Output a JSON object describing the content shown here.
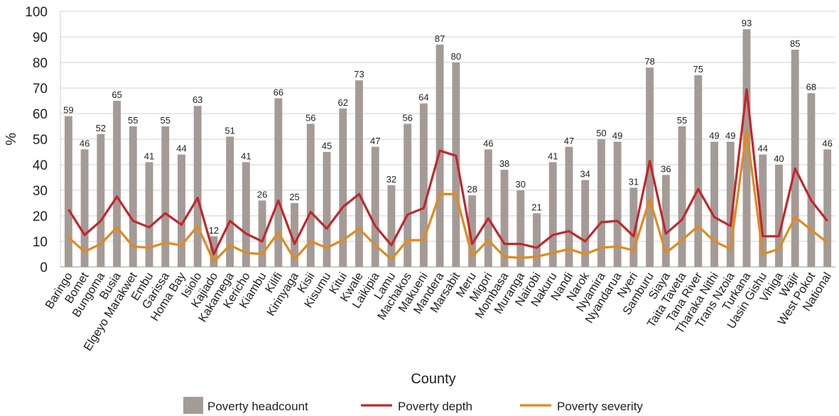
{
  "chart_data": {
    "type": "bar",
    "xlabel": "County",
    "ylabel": "%",
    "ylim": [
      0,
      100
    ],
    "yticks": [
      0,
      10,
      20,
      30,
      40,
      50,
      60,
      70,
      80,
      90,
      100
    ],
    "grid": true,
    "legend_position": "bottom",
    "categories": [
      "Baringo",
      "Bomet",
      "Bungoma",
      "Busia",
      "Elgeyo Marakwet",
      "Embu",
      "Garissa",
      "Homa Bay",
      "Isiolo",
      "Kajiado",
      "Kakamega",
      "Kericho",
      "Kiambu",
      "Kilifi",
      "Kirinyaga",
      "Kisii",
      "Kisumu",
      "Kitui",
      "Kwale",
      "Laikipia",
      "Lamu",
      "Machakos",
      "Makueni",
      "Mandera",
      "Marsabit",
      "Meru",
      "Migori",
      "Mombasa",
      "Muranga",
      "Nairobi",
      "Nakuru",
      "Nandi",
      "Narok",
      "Nyamira",
      "Nyandarua",
      "Nyeri",
      "Samburu",
      "Siaya",
      "Taita Taveta",
      "Tana River",
      "Tharaka Nithi",
      "Trans Nzoia",
      "Turkana",
      "Uasin Gishu",
      "Vihiga",
      "Wajir",
      "West Pokot",
      "National"
    ],
    "series": [
      {
        "name": "Poverty headcount",
        "type": "bar",
        "color": "#a59b96",
        "values": [
          59,
          46,
          52,
          65,
          55,
          41,
          55,
          44,
          63,
          12,
          51,
          41,
          26,
          66,
          25,
          56,
          45,
          62,
          73,
          47,
          32,
          56,
          64,
          87,
          80,
          28,
          46,
          38,
          30,
          21,
          41,
          47,
          34,
          50,
          49,
          31,
          78,
          36,
          55,
          75,
          49,
          49,
          93,
          44,
          40,
          85,
          68,
          46
        ]
      },
      {
        "name": "Poverty depth",
        "type": "line",
        "color": "#c1272d",
        "values": [
          22.5,
          12.5,
          18,
          27.5,
          18,
          15.5,
          21,
          16.5,
          27,
          5,
          18,
          13,
          10,
          26,
          9,
          21.5,
          15,
          23.5,
          28.5,
          16,
          8.5,
          20.5,
          23,
          45.5,
          43.5,
          9,
          19,
          9,
          9,
          7.5,
          12.5,
          14,
          10,
          17.5,
          18,
          12,
          41.5,
          13,
          18.5,
          30.5,
          19.5,
          16,
          69.5,
          12,
          12,
          38.5,
          26,
          18
        ]
      },
      {
        "name": "Poverty severity",
        "type": "line",
        "color": "#e08a1e",
        "values": [
          11.5,
          6,
          9,
          15.5,
          8,
          7.5,
          9.5,
          8.5,
          16,
          2,
          8.5,
          5.5,
          5,
          13.5,
          3,
          10,
          7.5,
          10.5,
          15,
          8.5,
          3,
          10.5,
          10.5,
          28.5,
          28.5,
          4,
          10.5,
          4,
          3.5,
          4,
          5.5,
          7,
          5,
          7.5,
          8,
          6.5,
          26.5,
          5.5,
          10.5,
          16,
          10,
          7,
          53.5,
          5,
          7,
          19.5,
          14.5,
          9.5
        ]
      }
    ]
  }
}
